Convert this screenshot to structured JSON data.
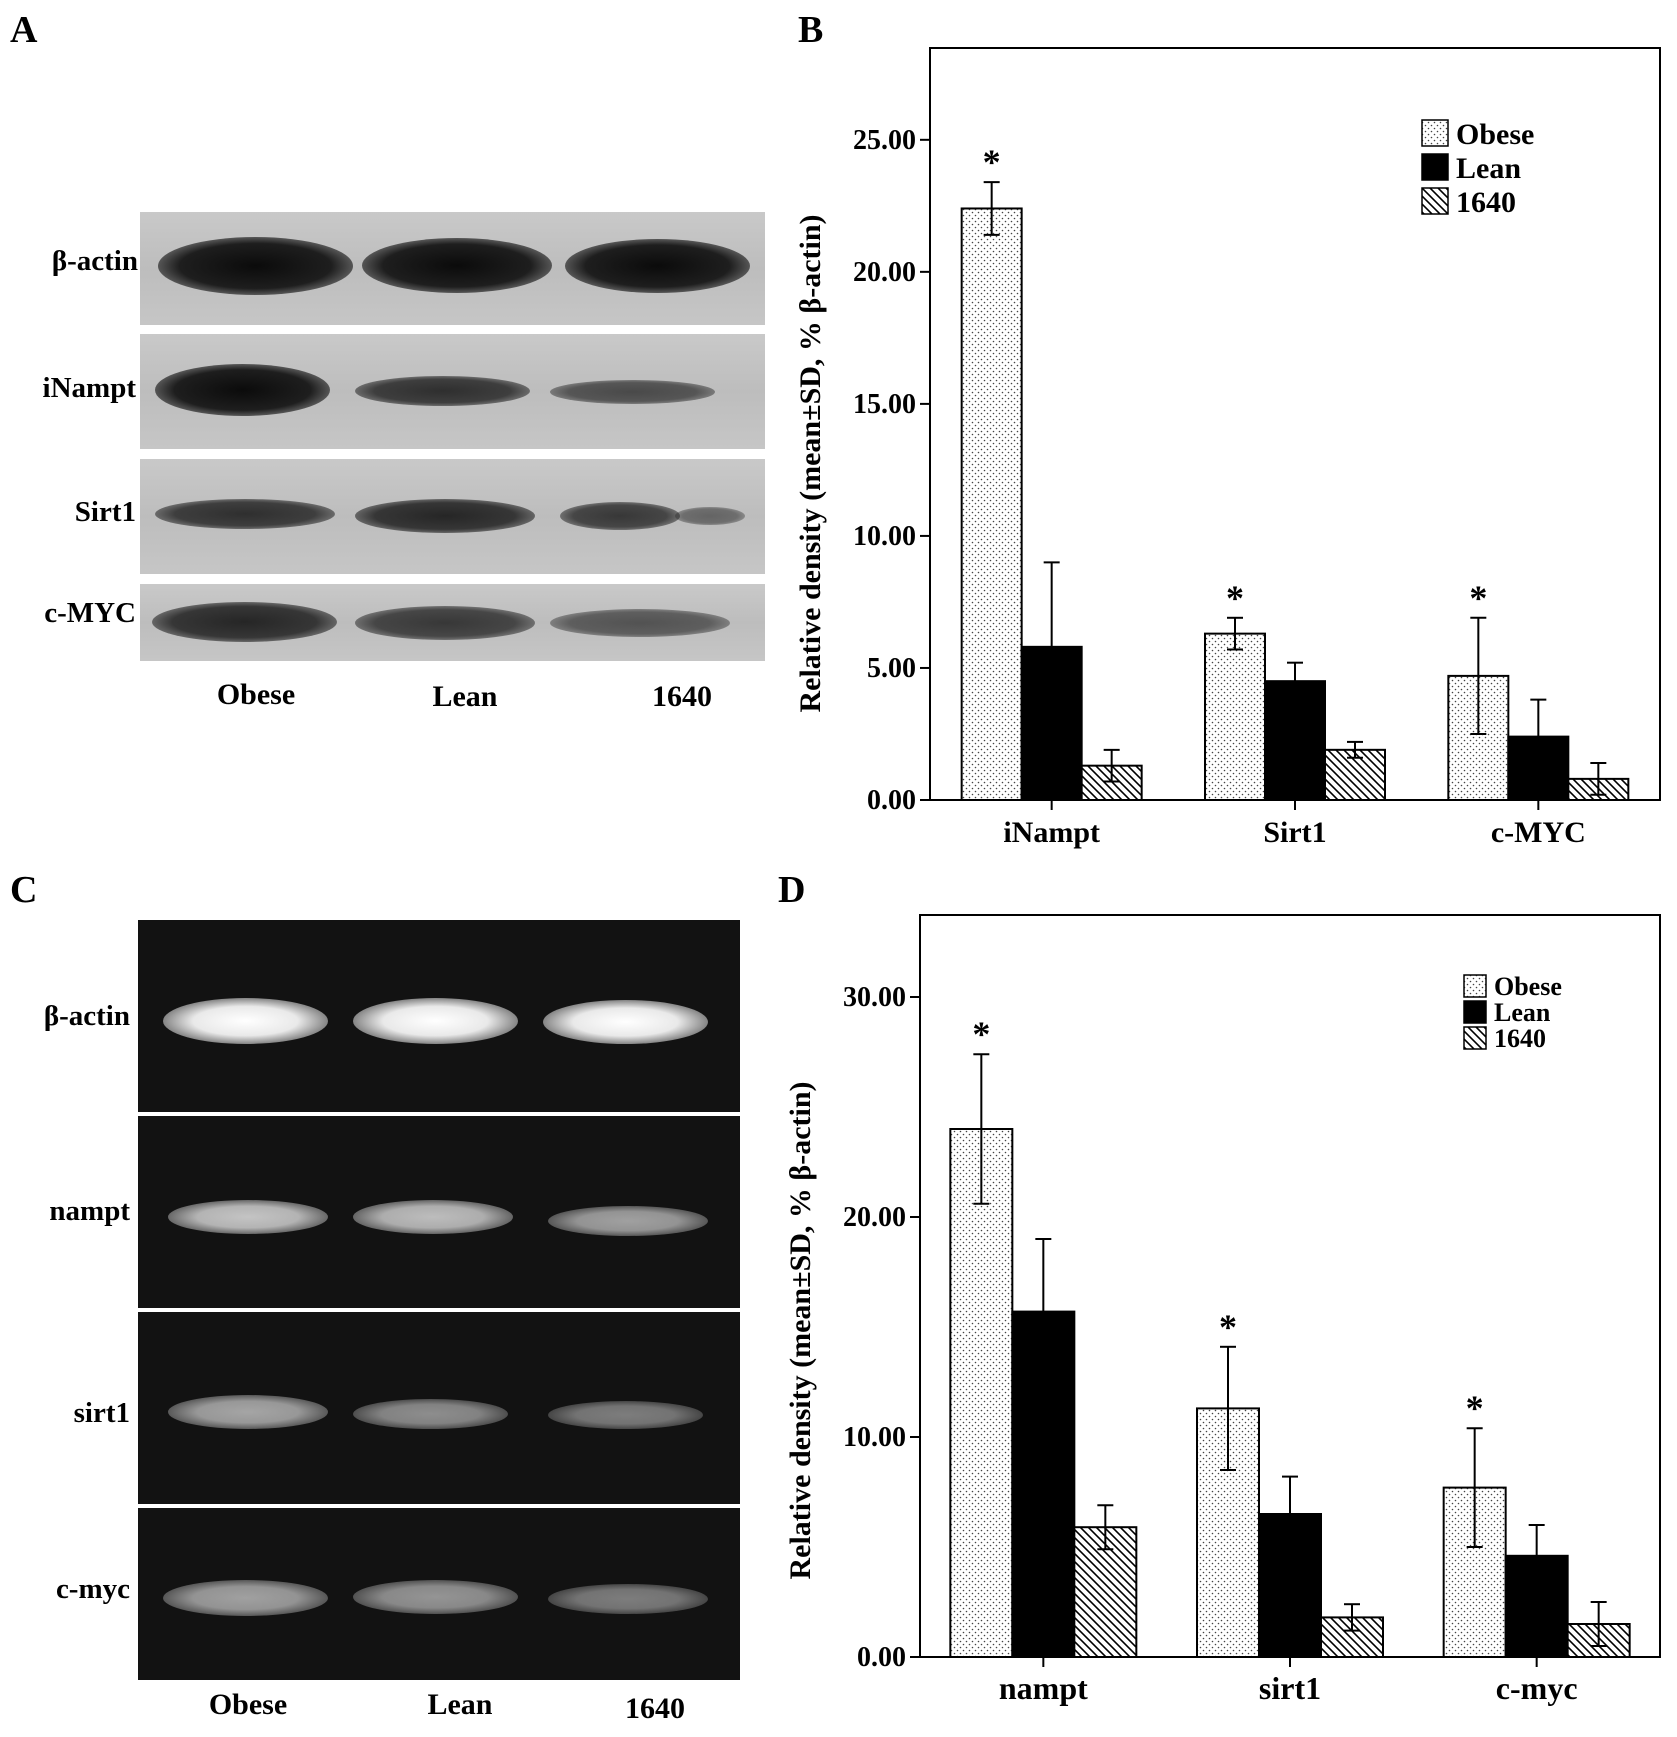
{
  "panels": {
    "a": "A",
    "b": "B",
    "c": "C",
    "d": "D"
  },
  "blot_a": {
    "rows": [
      "β-actin",
      "iNampt",
      "Sirt1",
      "c-MYC"
    ],
    "lanes": [
      "Obese",
      "Lean",
      "1640"
    ]
  },
  "gel_c": {
    "rows": [
      "β-actin",
      "nampt",
      "sirt1",
      "c-myc"
    ],
    "lanes": [
      "Obese",
      "Lean",
      "1640"
    ]
  },
  "colors": {
    "obese_fill": "#ffffff",
    "lean_fill": "#000000",
    "c1640_fill": "#ffffff"
  },
  "chart_data": [
    {
      "type": "bar",
      "panel": "B",
      "categories": [
        "iNampt",
        "Sirt1",
        "c-MYC"
      ],
      "series": [
        {
          "name": "Obese",
          "pattern": "dots",
          "values": [
            22.4,
            6.3,
            4.7
          ],
          "sd": [
            1.0,
            0.6,
            2.2
          ]
        },
        {
          "name": "Lean",
          "pattern": "solid",
          "values": [
            5.8,
            4.5,
            2.4
          ],
          "sd": [
            3.2,
            0.7,
            1.4
          ]
        },
        {
          "name": "1640",
          "pattern": "hatch",
          "values": [
            1.3,
            1.9,
            0.8
          ],
          "sd": [
            0.6,
            0.3,
            0.6
          ]
        }
      ],
      "significance": [
        "*",
        "*",
        "*"
      ],
      "ylabel": "Relative density (mean±SD, % β-actin)",
      "yticks": [
        "0.00",
        "5.00",
        "10.00",
        "15.00",
        "20.00",
        "25.00"
      ],
      "ylim": [
        0,
        27
      ],
      "legend": "top-right"
    },
    {
      "type": "bar",
      "panel": "D",
      "categories": [
        "nampt",
        "sirt1",
        "c-myc"
      ],
      "series": [
        {
          "name": "Obese",
          "pattern": "dots",
          "values": [
            24.0,
            11.3,
            7.7
          ],
          "sd": [
            3.4,
            2.8,
            2.7
          ]
        },
        {
          "name": "Lean",
          "pattern": "solid",
          "values": [
            15.7,
            6.5,
            4.6
          ],
          "sd": [
            3.3,
            1.7,
            1.4
          ]
        },
        {
          "name": "1640",
          "pattern": "hatch",
          "values": [
            5.9,
            1.8,
            1.5
          ],
          "sd": [
            1.0,
            0.6,
            1.0
          ]
        }
      ],
      "significance": [
        "*",
        "*",
        "*"
      ],
      "ylabel": "Relative density (mean±SD, % β-actin)",
      "yticks": [
        "0.00",
        "10.00",
        "20.00",
        "30.00"
      ],
      "ylim": [
        0,
        31.5
      ],
      "legend": "top-right"
    }
  ]
}
